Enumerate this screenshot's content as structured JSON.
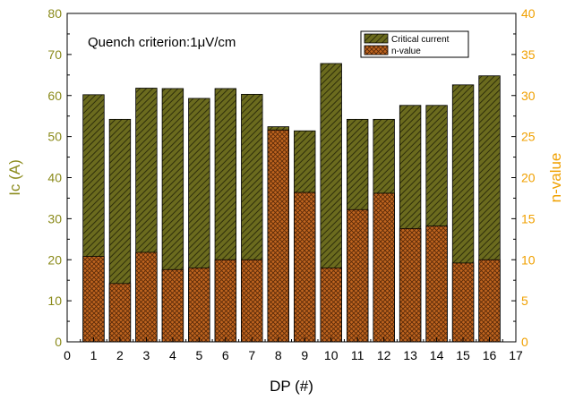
{
  "chart_data": {
    "type": "bar",
    "title": "",
    "annotation": "Quench criterion:1μV/cm",
    "xlabel": "DP (#)",
    "ylabel_left": "Ic (A)",
    "ylabel_right": "n-value",
    "xlim": [
      0,
      17
    ],
    "ylim_left": [
      0,
      80
    ],
    "ylim_right": [
      0,
      40
    ],
    "x_ticks": [
      "0",
      "1",
      "2",
      "3",
      "4",
      "5",
      "6",
      "7",
      "8",
      "9",
      "10",
      "11",
      "12",
      "13",
      "14",
      "15",
      "16",
      "17"
    ],
    "y_left_ticks": [
      "0",
      "10",
      "20",
      "30",
      "40",
      "50",
      "60",
      "70",
      "80"
    ],
    "y_right_ticks": [
      "0",
      "5",
      "10",
      "15",
      "20",
      "25",
      "30",
      "35",
      "40"
    ],
    "x": [
      1,
      2,
      3,
      4,
      5,
      6,
      7,
      8,
      9,
      10,
      11,
      12,
      13,
      14,
      15,
      16
    ],
    "series": [
      {
        "name": "Critical current",
        "axis": "left",
        "values": [
          60.2,
          54.2,
          61.8,
          61.7,
          59.3,
          61.7,
          60.3,
          52.4,
          51.4,
          67.8,
          54.2,
          54.2,
          57.6,
          57.6,
          62.6,
          64.8
        ]
      },
      {
        "name": "n-value",
        "axis": "right",
        "values": [
          10.4,
          7.1,
          10.9,
          8.8,
          9.0,
          10.0,
          10.0,
          25.8,
          18.2,
          9.0,
          16.1,
          18.1,
          13.8,
          14.1,
          9.6,
          10.0
        ]
      }
    ],
    "colors": {
      "ic_fill": "#6b6b1e",
      "ic_hatch": "#2e2e0a",
      "n_fill": "#c0651f",
      "n_hatch": "#5a2a08",
      "left_axis": "#8a8a1a",
      "right_axis": "#f0a000"
    },
    "legend_position": "top-right",
    "grid": false
  }
}
